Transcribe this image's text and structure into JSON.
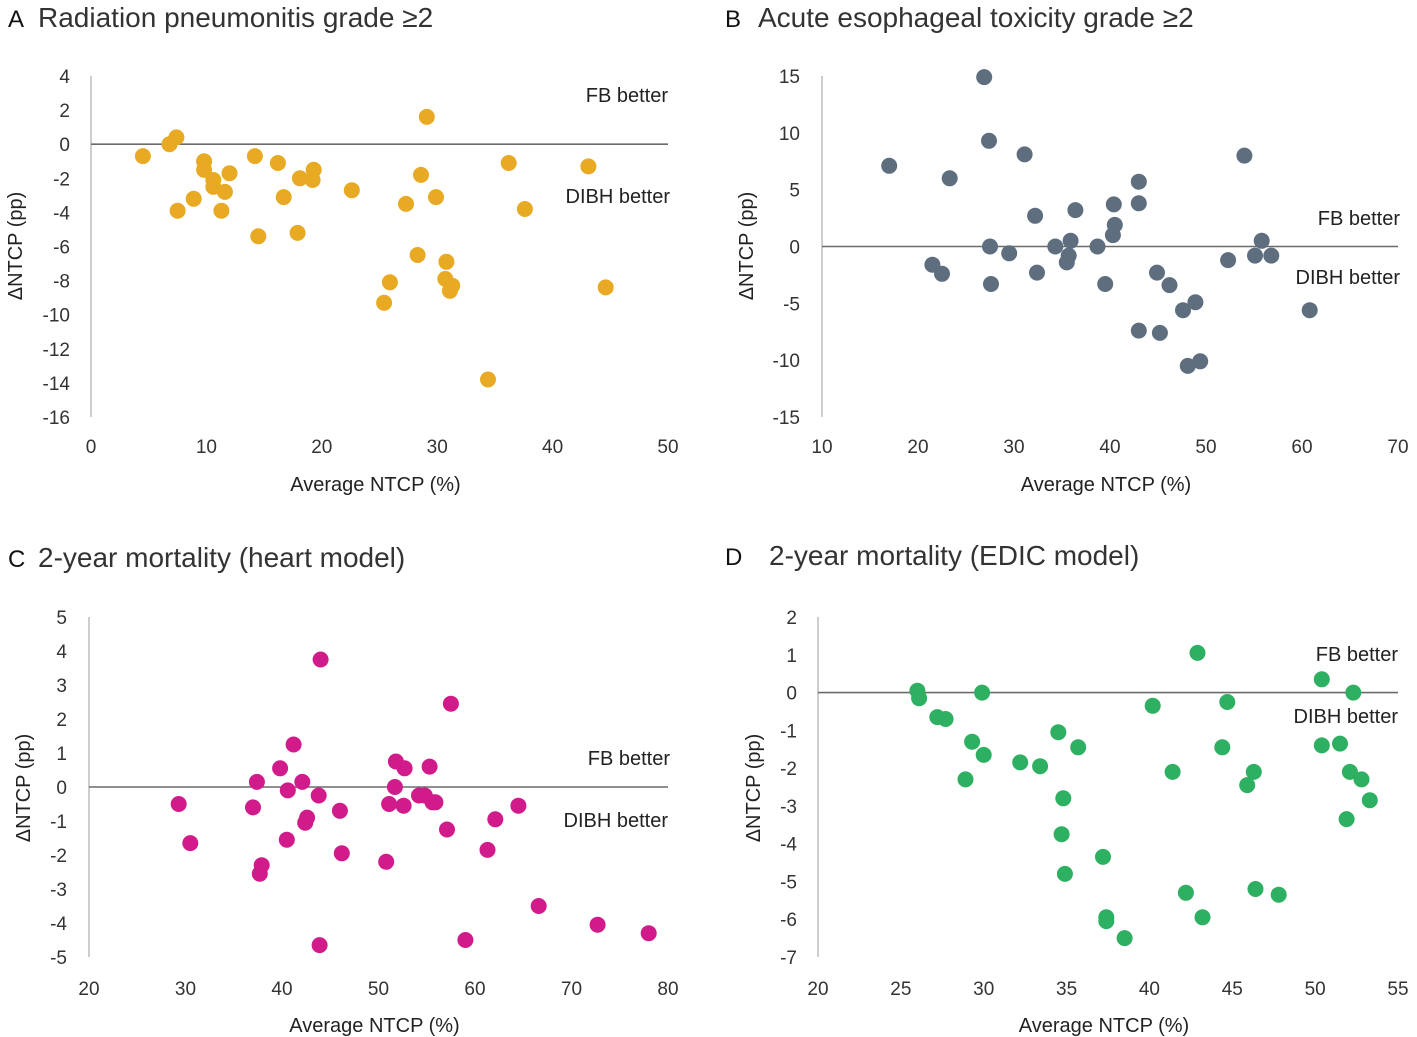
{
  "chart_data": [
    {
      "type": "scatter",
      "panel": "A",
      "title": "Radiation pneumonitis grade ≥2",
      "xlabel": "Average NTCP (%)",
      "ylabel": "ΔNTCP (pp)",
      "xlim": [
        0,
        50
      ],
      "ylim": [
        -16,
        4
      ],
      "xticks": [
        0,
        10,
        20,
        30,
        40,
        50
      ],
      "yticks": [
        -16,
        -14,
        -12,
        -10,
        -8,
        -6,
        -4,
        -2,
        0,
        2,
        4
      ],
      "color": "#E8AA22",
      "annotations": {
        "above": "FB better",
        "below": "DIBH better"
      },
      "points": [
        [
          4.5,
          -0.7
        ],
        [
          6.8,
          0.0
        ],
        [
          7.4,
          0.4
        ],
        [
          7.5,
          -3.9
        ],
        [
          8.9,
          -3.2
        ],
        [
          9.8,
          -1.0
        ],
        [
          9.8,
          -1.5
        ],
        [
          10.6,
          -2.1
        ],
        [
          10.6,
          -2.5
        ],
        [
          11.3,
          -3.9
        ],
        [
          11.6,
          -2.8
        ],
        [
          12.0,
          -1.7
        ],
        [
          14.2,
          -0.7
        ],
        [
          14.5,
          -5.4
        ],
        [
          16.2,
          -1.1
        ],
        [
          16.7,
          -3.1
        ],
        [
          17.9,
          -5.2
        ],
        [
          18.1,
          -2.0
        ],
        [
          19.2,
          -2.1
        ],
        [
          19.3,
          -1.5
        ],
        [
          22.6,
          -2.7
        ],
        [
          25.4,
          -9.3
        ],
        [
          25.9,
          -8.1
        ],
        [
          27.3,
          -3.5
        ],
        [
          28.3,
          -6.5
        ],
        [
          28.6,
          -1.8
        ],
        [
          29.1,
          1.6
        ],
        [
          29.9,
          -3.1
        ],
        [
          30.7,
          -7.9
        ],
        [
          30.8,
          -6.9
        ],
        [
          31.1,
          -8.6
        ],
        [
          31.3,
          -8.3
        ],
        [
          34.4,
          -13.8
        ],
        [
          36.2,
          -1.1
        ],
        [
          37.6,
          -3.8
        ],
        [
          43.1,
          -1.3
        ],
        [
          44.6,
          -8.4
        ]
      ]
    },
    {
      "type": "scatter",
      "panel": "B",
      "title": "Acute esophageal toxicity grade ≥2",
      "xlabel": "Average NTCP (%)",
      "ylabel": "ΔNTCP (pp)",
      "xlim": [
        10,
        70
      ],
      "ylim": [
        -15,
        15
      ],
      "xticks": [
        10,
        20,
        30,
        40,
        50,
        60,
        70
      ],
      "yticks": [
        -15,
        -10,
        -5,
        0,
        5,
        10,
        15
      ],
      "color": "#5E6E7F",
      "annotations": {
        "above": "FB better",
        "below": "DIBH better"
      },
      "points": [
        [
          17.0,
          7.1
        ],
        [
          21.5,
          -1.6
        ],
        [
          22.5,
          -2.4
        ],
        [
          23.3,
          6.0
        ],
        [
          26.9,
          14.9
        ],
        [
          27.4,
          9.3
        ],
        [
          27.5,
          0.0
        ],
        [
          27.6,
          -3.3
        ],
        [
          29.5,
          -0.6
        ],
        [
          31.1,
          8.1
        ],
        [
          32.2,
          2.7
        ],
        [
          32.4,
          -2.3
        ],
        [
          34.3,
          0.0
        ],
        [
          35.5,
          -1.4
        ],
        [
          35.7,
          -0.8
        ],
        [
          35.9,
          0.5
        ],
        [
          36.4,
          3.2
        ],
        [
          38.7,
          0.0
        ],
        [
          39.5,
          -3.3
        ],
        [
          40.3,
          1.0
        ],
        [
          40.4,
          3.7
        ],
        [
          40.5,
          1.9
        ],
        [
          43.0,
          5.7
        ],
        [
          43.0,
          3.8
        ],
        [
          43.0,
          -7.4
        ],
        [
          44.9,
          -2.3
        ],
        [
          45.2,
          -7.6
        ],
        [
          46.2,
          -3.4
        ],
        [
          47.6,
          -5.6
        ],
        [
          48.1,
          -10.5
        ],
        [
          48.9,
          -4.9
        ],
        [
          49.4,
          -10.1
        ],
        [
          52.3,
          -1.2
        ],
        [
          54.0,
          8.0
        ],
        [
          55.1,
          -0.8
        ],
        [
          55.8,
          0.5
        ],
        [
          56.8,
          -0.8
        ],
        [
          60.8,
          -5.6
        ]
      ]
    },
    {
      "type": "scatter",
      "panel": "C",
      "title": "2-year mortality (heart model)",
      "xlabel": "Average NTCP (%)",
      "ylabel": "ΔNTCP (pp)",
      "xlim": [
        20,
        80
      ],
      "ylim": [
        -5,
        5
      ],
      "xticks": [
        20,
        30,
        40,
        50,
        60,
        70,
        80
      ],
      "yticks": [
        -5,
        -4,
        -3,
        -2,
        -1,
        0,
        1,
        2,
        3,
        4,
        5
      ],
      "color": "#D11B8A",
      "annotations": {
        "above": "FB better",
        "below": "DIBH better"
      },
      "points": [
        [
          29.3,
          -0.5
        ],
        [
          30.5,
          -1.65
        ],
        [
          37.0,
          -0.6
        ],
        [
          37.4,
          0.15
        ],
        [
          37.7,
          -2.55
        ],
        [
          37.9,
          -2.3
        ],
        [
          39.8,
          0.55
        ],
        [
          40.5,
          -1.55
        ],
        [
          40.6,
          -0.1
        ],
        [
          41.2,
          1.25
        ],
        [
          42.1,
          0.15
        ],
        [
          42.4,
          -1.05
        ],
        [
          42.6,
          -0.9
        ],
        [
          43.8,
          -0.25
        ],
        [
          43.9,
          -4.65
        ],
        [
          44.0,
          3.75
        ],
        [
          46.0,
          -0.7
        ],
        [
          46.2,
          -1.95
        ],
        [
          50.8,
          -2.2
        ],
        [
          51.1,
          -0.5
        ],
        [
          51.7,
          0.0
        ],
        [
          51.8,
          0.75
        ],
        [
          52.6,
          -0.55
        ],
        [
          52.7,
          0.55
        ],
        [
          54.2,
          -0.25
        ],
        [
          54.8,
          -0.25
        ],
        [
          55.3,
          0.6
        ],
        [
          55.6,
          -0.45
        ],
        [
          55.9,
          -0.45
        ],
        [
          57.1,
          -1.25
        ],
        [
          57.5,
          2.45
        ],
        [
          59.0,
          -4.5
        ],
        [
          61.3,
          -1.85
        ],
        [
          62.1,
          -0.95
        ],
        [
          64.5,
          -0.55
        ],
        [
          66.6,
          -3.5
        ],
        [
          72.7,
          -4.05
        ],
        [
          78.0,
          -4.3
        ]
      ]
    },
    {
      "type": "scatter",
      "panel": "D",
      "title": "2-year mortality (EDIC model)",
      "xlabel": "Average NTCP (%)",
      "ylabel": "ΔNTCP (pp)",
      "xlim": [
        20,
        55
      ],
      "ylim": [
        -7,
        2
      ],
      "xticks": [
        20,
        25,
        30,
        35,
        40,
        45,
        50,
        55
      ],
      "yticks": [
        -7,
        -6,
        -5,
        -4,
        -3,
        -2,
        -1,
        0,
        1,
        2
      ],
      "color": "#2EB062",
      "annotations": {
        "above": "FB better",
        "below": "DIBH better"
      },
      "points": [
        [
          26.0,
          0.05
        ],
        [
          26.1,
          -0.15
        ],
        [
          27.2,
          -0.65
        ],
        [
          27.7,
          -0.7
        ],
        [
          28.9,
          -2.3
        ],
        [
          29.3,
          -1.3
        ],
        [
          29.9,
          0.0
        ],
        [
          30.0,
          -1.65
        ],
        [
          32.2,
          -1.85
        ],
        [
          33.4,
          -1.95
        ],
        [
          34.5,
          -1.05
        ],
        [
          34.8,
          -2.8
        ],
        [
          34.7,
          -3.75
        ],
        [
          34.9,
          -4.8
        ],
        [
          35.7,
          -1.45
        ],
        [
          37.2,
          -4.35
        ],
        [
          37.4,
          -5.95
        ],
        [
          37.4,
          -6.05
        ],
        [
          38.5,
          -6.5
        ],
        [
          40.2,
          -0.35
        ],
        [
          41.4,
          -2.1
        ],
        [
          42.2,
          -5.3
        ],
        [
          42.9,
          1.05
        ],
        [
          43.2,
          -5.95
        ],
        [
          44.4,
          -1.45
        ],
        [
          44.7,
          -0.25
        ],
        [
          45.9,
          -2.45
        ],
        [
          46.3,
          -2.1
        ],
        [
          46.4,
          -5.2
        ],
        [
          47.8,
          -5.35
        ],
        [
          50.4,
          -1.4
        ],
        [
          50.4,
          0.35
        ],
        [
          51.5,
          -1.35
        ],
        [
          51.9,
          -3.35
        ],
        [
          52.1,
          -2.1
        ],
        [
          52.3,
          0.0
        ],
        [
          52.8,
          -2.3
        ],
        [
          53.3,
          -2.85
        ]
      ]
    }
  ]
}
